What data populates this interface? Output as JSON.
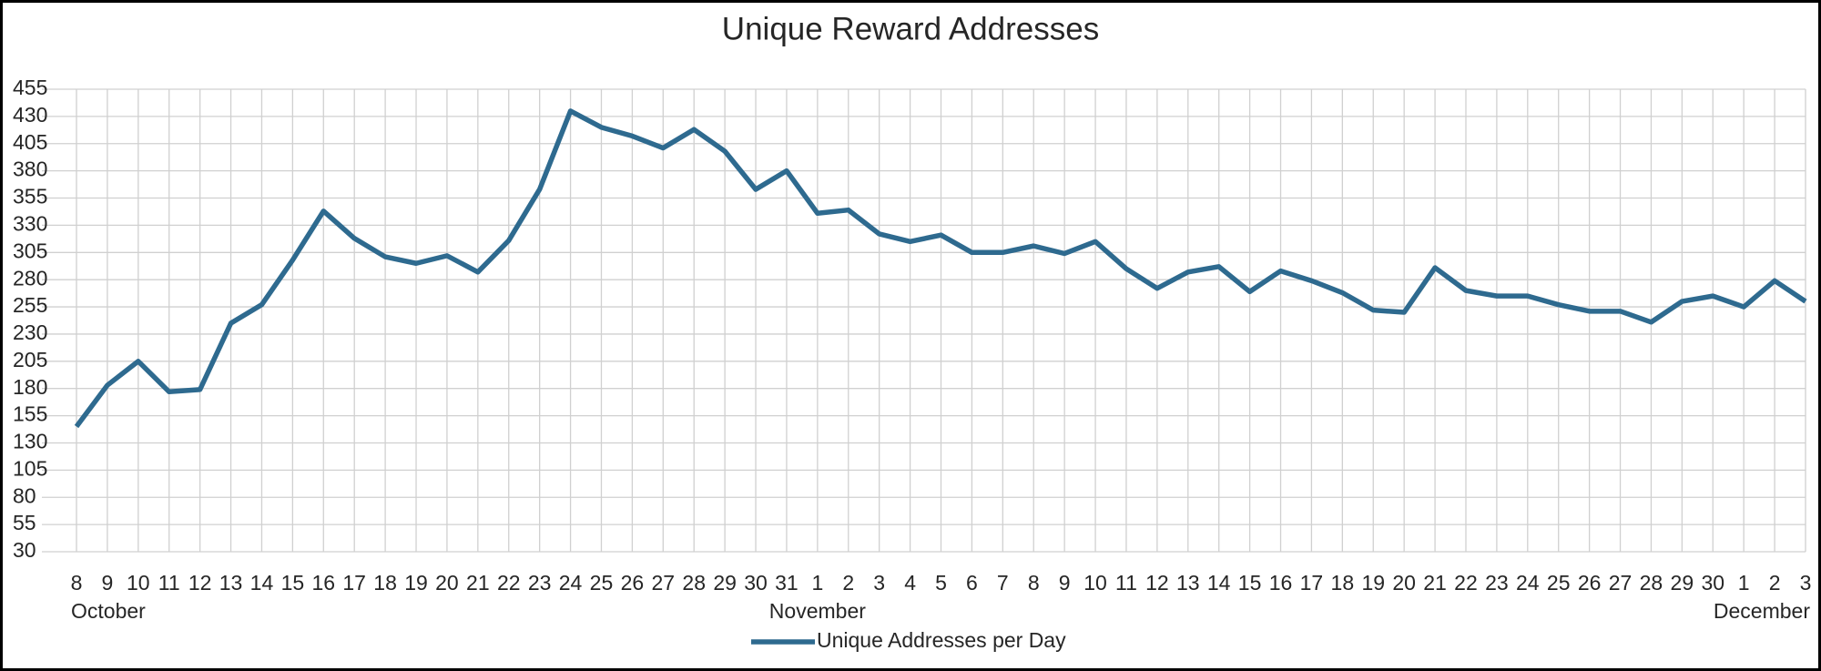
{
  "chart_data": {
    "type": "line",
    "title": "Unique Reward Addresses",
    "categories": [
      "8",
      "9",
      "10",
      "11",
      "12",
      "13",
      "14",
      "15",
      "16",
      "17",
      "18",
      "19",
      "20",
      "21",
      "22",
      "23",
      "24",
      "25",
      "26",
      "27",
      "28",
      "29",
      "30",
      "31",
      "1",
      "2",
      "3",
      "4",
      "5",
      "6",
      "7",
      "8",
      "9",
      "10",
      "11",
      "12",
      "13",
      "14",
      "15",
      "16",
      "17",
      "18",
      "19",
      "20",
      "21",
      "22",
      "23",
      "24",
      "25",
      "26",
      "27",
      "28",
      "29",
      "30",
      "1",
      "2",
      "3"
    ],
    "months": [
      "October",
      "November",
      "December"
    ],
    "series": [
      {
        "name": "Unique Addresses per Day",
        "color": "#2e6a8f",
        "values": [
          145,
          183,
          205,
          177,
          179,
          240,
          257,
          298,
          343,
          318,
          301,
          295,
          302,
          287,
          316,
          363,
          435,
          420,
          412,
          401,
          418,
          398,
          363,
          380,
          341,
          344,
          322,
          315,
          321,
          305,
          305,
          311,
          304,
          315,
          290,
          272,
          287,
          292,
          269,
          288,
          279,
          268,
          252,
          250,
          291,
          270,
          265,
          265,
          257,
          251,
          251,
          241,
          260,
          265,
          255,
          279,
          260
        ]
      }
    ],
    "ylim": [
      30,
      455
    ],
    "yticks": [
      30,
      55,
      80,
      105,
      130,
      155,
      180,
      205,
      230,
      255,
      280,
      305,
      330,
      355,
      380,
      405,
      430,
      455
    ],
    "grid": true,
    "legend": "bottom"
  }
}
